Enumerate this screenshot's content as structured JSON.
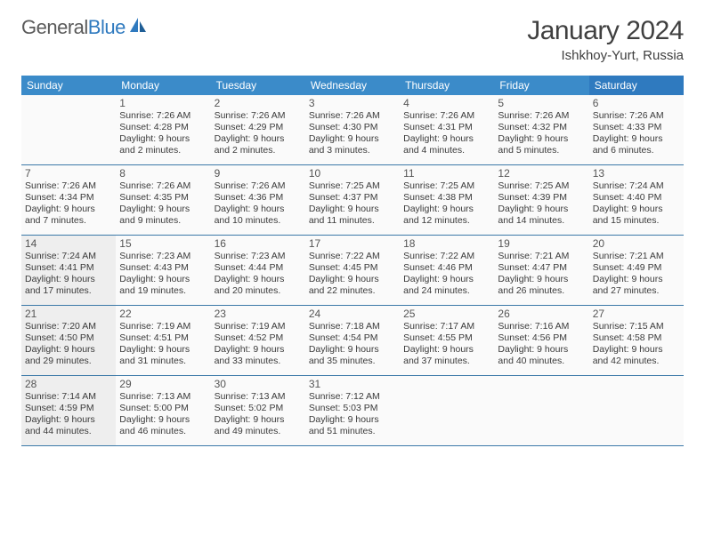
{
  "logo": {
    "text1": "General",
    "text2": "Blue"
  },
  "title": "January 2024",
  "location": "Ishkhoy-Yurt, Russia",
  "colors": {
    "header_bg": "#3b8bc9",
    "sat_bg": "#2f7abf",
    "row_border": "#3b79a8",
    "shaded_bg": "#eeeeee",
    "cell_bg": "#fafafa",
    "text": "#333333"
  },
  "weekdays": [
    "Sunday",
    "Monday",
    "Tuesday",
    "Wednesday",
    "Thursday",
    "Friday",
    "Saturday"
  ],
  "weeks": [
    [
      {
        "num": "",
        "shaded": false,
        "lines": []
      },
      {
        "num": "1",
        "shaded": false,
        "lines": [
          "Sunrise: 7:26 AM",
          "Sunset: 4:28 PM",
          "Daylight: 9 hours",
          "and 2 minutes."
        ]
      },
      {
        "num": "2",
        "shaded": false,
        "lines": [
          "Sunrise: 7:26 AM",
          "Sunset: 4:29 PM",
          "Daylight: 9 hours",
          "and 2 minutes."
        ]
      },
      {
        "num": "3",
        "shaded": false,
        "lines": [
          "Sunrise: 7:26 AM",
          "Sunset: 4:30 PM",
          "Daylight: 9 hours",
          "and 3 minutes."
        ]
      },
      {
        "num": "4",
        "shaded": false,
        "lines": [
          "Sunrise: 7:26 AM",
          "Sunset: 4:31 PM",
          "Daylight: 9 hours",
          "and 4 minutes."
        ]
      },
      {
        "num": "5",
        "shaded": false,
        "lines": [
          "Sunrise: 7:26 AM",
          "Sunset: 4:32 PM",
          "Daylight: 9 hours",
          "and 5 minutes."
        ]
      },
      {
        "num": "6",
        "shaded": false,
        "lines": [
          "Sunrise: 7:26 AM",
          "Sunset: 4:33 PM",
          "Daylight: 9 hours",
          "and 6 minutes."
        ]
      }
    ],
    [
      {
        "num": "7",
        "shaded": false,
        "lines": [
          "Sunrise: 7:26 AM",
          "Sunset: 4:34 PM",
          "Daylight: 9 hours",
          "and 7 minutes."
        ]
      },
      {
        "num": "8",
        "shaded": false,
        "lines": [
          "Sunrise: 7:26 AM",
          "Sunset: 4:35 PM",
          "Daylight: 9 hours",
          "and 9 minutes."
        ]
      },
      {
        "num": "9",
        "shaded": false,
        "lines": [
          "Sunrise: 7:26 AM",
          "Sunset: 4:36 PM",
          "Daylight: 9 hours",
          "and 10 minutes."
        ]
      },
      {
        "num": "10",
        "shaded": false,
        "lines": [
          "Sunrise: 7:25 AM",
          "Sunset: 4:37 PM",
          "Daylight: 9 hours",
          "and 11 minutes."
        ]
      },
      {
        "num": "11",
        "shaded": false,
        "lines": [
          "Sunrise: 7:25 AM",
          "Sunset: 4:38 PM",
          "Daylight: 9 hours",
          "and 12 minutes."
        ]
      },
      {
        "num": "12",
        "shaded": false,
        "lines": [
          "Sunrise: 7:25 AM",
          "Sunset: 4:39 PM",
          "Daylight: 9 hours",
          "and 14 minutes."
        ]
      },
      {
        "num": "13",
        "shaded": false,
        "lines": [
          "Sunrise: 7:24 AM",
          "Sunset: 4:40 PM",
          "Daylight: 9 hours",
          "and 15 minutes."
        ]
      }
    ],
    [
      {
        "num": "14",
        "shaded": true,
        "lines": [
          "Sunrise: 7:24 AM",
          "Sunset: 4:41 PM",
          "Daylight: 9 hours",
          "and 17 minutes."
        ]
      },
      {
        "num": "15",
        "shaded": false,
        "lines": [
          "Sunrise: 7:23 AM",
          "Sunset: 4:43 PM",
          "Daylight: 9 hours",
          "and 19 minutes."
        ]
      },
      {
        "num": "16",
        "shaded": false,
        "lines": [
          "Sunrise: 7:23 AM",
          "Sunset: 4:44 PM",
          "Daylight: 9 hours",
          "and 20 minutes."
        ]
      },
      {
        "num": "17",
        "shaded": false,
        "lines": [
          "Sunrise: 7:22 AM",
          "Sunset: 4:45 PM",
          "Daylight: 9 hours",
          "and 22 minutes."
        ]
      },
      {
        "num": "18",
        "shaded": false,
        "lines": [
          "Sunrise: 7:22 AM",
          "Sunset: 4:46 PM",
          "Daylight: 9 hours",
          "and 24 minutes."
        ]
      },
      {
        "num": "19",
        "shaded": false,
        "lines": [
          "Sunrise: 7:21 AM",
          "Sunset: 4:47 PM",
          "Daylight: 9 hours",
          "and 26 minutes."
        ]
      },
      {
        "num": "20",
        "shaded": false,
        "lines": [
          "Sunrise: 7:21 AM",
          "Sunset: 4:49 PM",
          "Daylight: 9 hours",
          "and 27 minutes."
        ]
      }
    ],
    [
      {
        "num": "21",
        "shaded": true,
        "lines": [
          "Sunrise: 7:20 AM",
          "Sunset: 4:50 PM",
          "Daylight: 9 hours",
          "and 29 minutes."
        ]
      },
      {
        "num": "22",
        "shaded": false,
        "lines": [
          "Sunrise: 7:19 AM",
          "Sunset: 4:51 PM",
          "Daylight: 9 hours",
          "and 31 minutes."
        ]
      },
      {
        "num": "23",
        "shaded": false,
        "lines": [
          "Sunrise: 7:19 AM",
          "Sunset: 4:52 PM",
          "Daylight: 9 hours",
          "and 33 minutes."
        ]
      },
      {
        "num": "24",
        "shaded": false,
        "lines": [
          "Sunrise: 7:18 AM",
          "Sunset: 4:54 PM",
          "Daylight: 9 hours",
          "and 35 minutes."
        ]
      },
      {
        "num": "25",
        "shaded": false,
        "lines": [
          "Sunrise: 7:17 AM",
          "Sunset: 4:55 PM",
          "Daylight: 9 hours",
          "and 37 minutes."
        ]
      },
      {
        "num": "26",
        "shaded": false,
        "lines": [
          "Sunrise: 7:16 AM",
          "Sunset: 4:56 PM",
          "Daylight: 9 hours",
          "and 40 minutes."
        ]
      },
      {
        "num": "27",
        "shaded": false,
        "lines": [
          "Sunrise: 7:15 AM",
          "Sunset: 4:58 PM",
          "Daylight: 9 hours",
          "and 42 minutes."
        ]
      }
    ],
    [
      {
        "num": "28",
        "shaded": true,
        "lines": [
          "Sunrise: 7:14 AM",
          "Sunset: 4:59 PM",
          "Daylight: 9 hours",
          "and 44 minutes."
        ]
      },
      {
        "num": "29",
        "shaded": false,
        "lines": [
          "Sunrise: 7:13 AM",
          "Sunset: 5:00 PM",
          "Daylight: 9 hours",
          "and 46 minutes."
        ]
      },
      {
        "num": "30",
        "shaded": false,
        "lines": [
          "Sunrise: 7:13 AM",
          "Sunset: 5:02 PM",
          "Daylight: 9 hours",
          "and 49 minutes."
        ]
      },
      {
        "num": "31",
        "shaded": false,
        "lines": [
          "Sunrise: 7:12 AM",
          "Sunset: 5:03 PM",
          "Daylight: 9 hours",
          "and 51 minutes."
        ]
      },
      {
        "num": "",
        "shaded": false,
        "lines": []
      },
      {
        "num": "",
        "shaded": false,
        "lines": []
      },
      {
        "num": "",
        "shaded": false,
        "lines": []
      }
    ]
  ]
}
